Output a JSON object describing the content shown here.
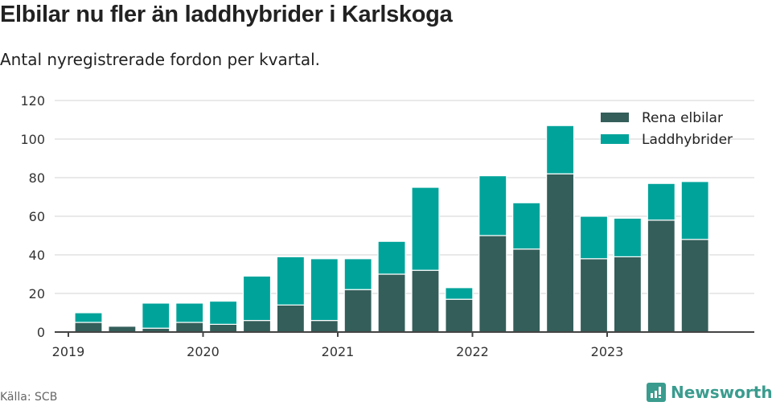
{
  "title": "Elbilar nu fler än laddhybrider i Karlskoga",
  "subtitle": "Antal nyregistrerade fordon per kvartal.",
  "source": "Källa: SCB",
  "brand": "Newsworthy",
  "colors": {
    "elbil": "#345e5a",
    "laddhybrid": "#00a39a",
    "grid": "#e2e2e2",
    "axis": "#444444"
  },
  "chart_data": {
    "type": "bar",
    "stacked": true,
    "title": "Elbilar nu fler än laddhybrider i Karlskoga",
    "subtitle": "Antal nyregistrerade fordon per kvartal.",
    "xlabel": "",
    "ylabel": "",
    "ylim": [
      0,
      120
    ],
    "yticks": [
      0,
      20,
      40,
      60,
      80,
      100,
      120
    ],
    "xtick_labels": [
      "2019",
      "2020",
      "2021",
      "2022",
      "2023"
    ],
    "grid": true,
    "legend_position": "top-right",
    "categories": [
      "2019Q1",
      "2019Q2",
      "2019Q3",
      "2019Q4",
      "2020Q1",
      "2020Q2",
      "2020Q3",
      "2020Q4",
      "2021Q1",
      "2021Q2",
      "2021Q3",
      "2021Q4",
      "2022Q1",
      "2022Q2",
      "2022Q3",
      "2022Q4",
      "2023Q1",
      "2023Q2",
      "2023Q3",
      "2023Q4"
    ],
    "series": [
      {
        "name": "Rena elbilar",
        "values": [
          0,
          5,
          3,
          2,
          5,
          4,
          6,
          14,
          6,
          22,
          30,
          32,
          17,
          50,
          43,
          82,
          38,
          39,
          58,
          48
        ]
      },
      {
        "name": "Laddhybrider",
        "values": [
          0,
          5,
          0,
          13,
          10,
          12,
          23,
          25,
          32,
          16,
          17,
          43,
          6,
          31,
          24,
          25,
          22,
          20,
          19,
          30
        ]
      }
    ]
  }
}
